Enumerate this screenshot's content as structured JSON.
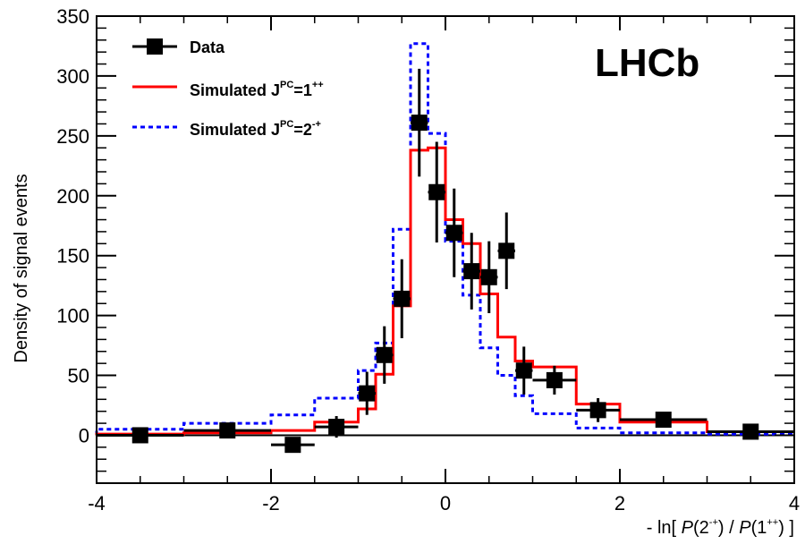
{
  "chart_data": {
    "type": "histogram",
    "watermark": "LHCb",
    "ylabel": "Density of signal events",
    "xlabel": {
      "prefix": "- ln[ ",
      "p1": "P",
      "mid1": "(2",
      "sup1": "-+",
      "mid2": ") / ",
      "p2": "P",
      "mid3": "(1",
      "sup2": "++",
      "suffix": ") ]"
    },
    "xlim": [
      -4,
      4
    ],
    "ylim": [
      -40,
      350
    ],
    "xticks": [
      -4,
      -2,
      0,
      2,
      4
    ],
    "yticks": [
      0,
      50,
      100,
      150,
      200,
      250,
      300,
      350
    ],
    "legend": {
      "position": "top-left",
      "entries": [
        {
          "key": "data",
          "label": "Data"
        },
        {
          "key": "sim1",
          "label": "Simulated J",
          "sup": "PC",
          "value": "=1",
          "valsup": "++"
        },
        {
          "key": "sim2",
          "label": "Simulated J",
          "sup": "PC",
          "value": "=2",
          "valsup": "-+"
        }
      ]
    },
    "colors": {
      "data": "#000000",
      "sim1": "#ff0000",
      "sim2": "#0000ff"
    },
    "series": [
      {
        "name": "Data",
        "style": "points",
        "points": [
          {
            "x": -3.5,
            "y": 0,
            "xerr": 0.5,
            "yerr": 6
          },
          {
            "x": -2.5,
            "y": 4,
            "xerr": 0.5,
            "yerr": 5
          },
          {
            "x": -1.75,
            "y": -8,
            "xerr": 0.25,
            "yerr": 5
          },
          {
            "x": -1.25,
            "y": 7,
            "xerr": 0.25,
            "yerr": 9
          },
          {
            "x": -0.9,
            "y": 35,
            "xerr": 0.1,
            "yerr": 18
          },
          {
            "x": -0.7,
            "y": 67,
            "xerr": 0.1,
            "yerr": 24
          },
          {
            "x": -0.5,
            "y": 114,
            "xerr": 0.1,
            "yerr": 33
          },
          {
            "x": -0.3,
            "y": 261,
            "xerr": 0.1,
            "yerr": 45
          },
          {
            "x": -0.1,
            "y": 203,
            "xerr": 0.1,
            "yerr": 42
          },
          {
            "x": 0.1,
            "y": 169,
            "xerr": 0.1,
            "yerr": 37
          },
          {
            "x": 0.3,
            "y": 137,
            "xerr": 0.1,
            "yerr": 32
          },
          {
            "x": 0.5,
            "y": 132,
            "xerr": 0.1,
            "yerr": 30
          },
          {
            "x": 0.7,
            "y": 154,
            "xerr": 0.1,
            "yerr": 32
          },
          {
            "x": 0.9,
            "y": 54,
            "xerr": 0.1,
            "yerr": 20
          },
          {
            "x": 1.25,
            "y": 46,
            "xerr": 0.25,
            "yerr": 12
          },
          {
            "x": 1.75,
            "y": 21,
            "xerr": 0.25,
            "yerr": 10
          },
          {
            "x": 2.5,
            "y": 13,
            "xerr": 0.5,
            "yerr": 5
          },
          {
            "x": 3.5,
            "y": 3,
            "xerr": 0.5,
            "yerr": 4
          }
        ]
      },
      {
        "name": "Simulated JPC=1++",
        "style": "step",
        "edges": [
          -4,
          -3,
          -2,
          -1.5,
          -1,
          -0.8,
          -0.6,
          -0.4,
          -0.2,
          0,
          0.2,
          0.4,
          0.6,
          0.8,
          1,
          1.5,
          2,
          3,
          4
        ],
        "values": [
          1,
          2,
          4,
          11,
          22,
          51,
          108,
          238,
          240,
          180,
          160,
          118,
          82,
          62,
          57,
          26,
          11,
          3,
          3
        ]
      },
      {
        "name": "Simulated JPC=2-+",
        "style": "step-dashed",
        "edges": [
          -4,
          -3,
          -2,
          -1.5,
          -1,
          -0.8,
          -0.6,
          -0.4,
          -0.2,
          0,
          0.2,
          0.4,
          0.6,
          0.8,
          1,
          1.5,
          2,
          3,
          4
        ],
        "values": [
          5,
          10,
          17,
          31,
          54,
          77,
          172,
          327,
          252,
          162,
          117,
          73,
          50,
          33,
          18,
          6,
          2,
          1,
          1
        ]
      }
    ]
  }
}
